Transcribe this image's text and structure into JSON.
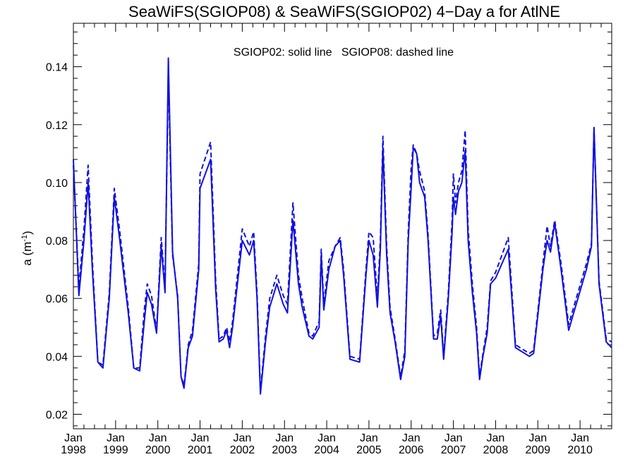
{
  "chart_data": {
    "type": "line",
    "title": "SeaWiFS(SGIOP08) & SeaWiFS(SGIOP02) 4−Day a for AtlNE",
    "annotation": "SGIOP02: solid line   SGIOP08: dashed line",
    "ylabel_main": "a (m",
    "ylabel_sup": "-1",
    "ylabel_close": ")",
    "ylim": [
      0.015,
      0.155
    ],
    "xlim": [
      1998.0,
      2010.75
    ],
    "y_ticks": [
      {
        "value": 0.02,
        "label": "0.02"
      },
      {
        "value": 0.04,
        "label": "0.04"
      },
      {
        "value": 0.06,
        "label": "0.06"
      },
      {
        "value": 0.08,
        "label": "0.08"
      },
      {
        "value": 0.1,
        "label": "0.10"
      },
      {
        "value": 0.12,
        "label": "0.12"
      },
      {
        "value": 0.14,
        "label": "0.14"
      }
    ],
    "x_ticks": [
      {
        "value": 1998,
        "month": "Jan",
        "year": "1998"
      },
      {
        "value": 1999,
        "month": "Jan",
        "year": "1999"
      },
      {
        "value": 2000,
        "month": "Jan",
        "year": "2000"
      },
      {
        "value": 2001,
        "month": "Jan",
        "year": "2001"
      },
      {
        "value": 2002,
        "month": "Jan",
        "year": "2002"
      },
      {
        "value": 2003,
        "month": "Jan",
        "year": "2003"
      },
      {
        "value": 2004,
        "month": "Jan",
        "year": "2004"
      },
      {
        "value": 2005,
        "month": "Jan",
        "year": "2005"
      },
      {
        "value": 2006,
        "month": "Jan",
        "year": "2006"
      },
      {
        "value": 2007,
        "month": "Jan",
        "year": "2007"
      },
      {
        "value": 2008,
        "month": "Jan",
        "year": "2008"
      },
      {
        "value": 2009,
        "month": "Jan",
        "year": "2009"
      },
      {
        "value": 2010,
        "month": "Jan",
        "year": "2010"
      }
    ],
    "line_color": "#1010e0",
    "series": [
      {
        "name": "SGIOP02",
        "style": "solid",
        "points": [
          [
            1998.0,
            0.108
          ],
          [
            1998.13,
            0.061
          ],
          [
            1998.25,
            0.08
          ],
          [
            1998.35,
            0.1
          ],
          [
            1998.45,
            0.07
          ],
          [
            1998.58,
            0.038
          ],
          [
            1998.7,
            0.036
          ],
          [
            1998.85,
            0.06
          ],
          [
            1998.97,
            0.095
          ],
          [
            1999.1,
            0.08
          ],
          [
            1999.3,
            0.055
          ],
          [
            1999.43,
            0.036
          ],
          [
            1999.57,
            0.035
          ],
          [
            1999.68,
            0.052
          ],
          [
            1999.75,
            0.062
          ],
          [
            1999.85,
            0.058
          ],
          [
            1999.97,
            0.048
          ],
          [
            2000.08,
            0.078
          ],
          [
            2000.17,
            0.062
          ],
          [
            2000.25,
            0.143
          ],
          [
            2000.35,
            0.076
          ],
          [
            2000.47,
            0.06
          ],
          [
            2000.55,
            0.033
          ],
          [
            2000.62,
            0.029
          ],
          [
            2000.72,
            0.043
          ],
          [
            2000.82,
            0.047
          ],
          [
            2000.97,
            0.07
          ],
          [
            2001.0,
            0.098
          ],
          [
            2001.25,
            0.108
          ],
          [
            2001.37,
            0.063
          ],
          [
            2001.45,
            0.045
          ],
          [
            2001.55,
            0.046
          ],
          [
            2001.63,
            0.049
          ],
          [
            2001.7,
            0.043
          ],
          [
            2001.77,
            0.05
          ],
          [
            2002.0,
            0.08
          ],
          [
            2002.17,
            0.075
          ],
          [
            2002.27,
            0.08
          ],
          [
            2002.35,
            0.06
          ],
          [
            2002.43,
            0.027
          ],
          [
            2002.55,
            0.045
          ],
          [
            2002.65,
            0.057
          ],
          [
            2002.82,
            0.065
          ],
          [
            2002.97,
            0.058
          ],
          [
            2003.07,
            0.055
          ],
          [
            2003.2,
            0.087
          ],
          [
            2003.33,
            0.065
          ],
          [
            2003.42,
            0.057
          ],
          [
            2003.58,
            0.047
          ],
          [
            2003.67,
            0.046
          ],
          [
            2003.82,
            0.05
          ],
          [
            2003.87,
            0.075
          ],
          [
            2003.93,
            0.056
          ],
          [
            2004.05,
            0.07
          ],
          [
            2004.2,
            0.078
          ],
          [
            2004.32,
            0.08
          ],
          [
            2004.4,
            0.068
          ],
          [
            2004.55,
            0.039
          ],
          [
            2004.78,
            0.038
          ],
          [
            2004.93,
            0.068
          ],
          [
            2005.0,
            0.08
          ],
          [
            2005.1,
            0.075
          ],
          [
            2005.2,
            0.057
          ],
          [
            2005.27,
            0.077
          ],
          [
            2005.33,
            0.112
          ],
          [
            2005.42,
            0.075
          ],
          [
            2005.5,
            0.055
          ],
          [
            2005.62,
            0.045
          ],
          [
            2005.75,
            0.032
          ],
          [
            2005.85,
            0.04
          ],
          [
            2005.93,
            0.08
          ],
          [
            2006.0,
            0.098
          ],
          [
            2006.05,
            0.112
          ],
          [
            2006.13,
            0.11
          ],
          [
            2006.2,
            0.1
          ],
          [
            2006.32,
            0.095
          ],
          [
            2006.4,
            0.08
          ],
          [
            2006.53,
            0.046
          ],
          [
            2006.62,
            0.046
          ],
          [
            2006.7,
            0.054
          ],
          [
            2006.77,
            0.039
          ],
          [
            2006.88,
            0.06
          ],
          [
            2006.97,
            0.083
          ],
          [
            2007.0,
            0.095
          ],
          [
            2007.05,
            0.089
          ],
          [
            2007.12,
            0.097
          ],
          [
            2007.2,
            0.1
          ],
          [
            2007.28,
            0.111
          ],
          [
            2007.35,
            0.08
          ],
          [
            2007.45,
            0.062
          ],
          [
            2007.55,
            0.048
          ],
          [
            2007.62,
            0.032
          ],
          [
            2007.7,
            0.04
          ],
          [
            2007.8,
            0.048
          ],
          [
            2007.88,
            0.065
          ],
          [
            2008.0,
            0.067
          ],
          [
            2008.3,
            0.077
          ],
          [
            2008.47,
            0.043
          ],
          [
            2008.8,
            0.04
          ],
          [
            2008.9,
            0.041
          ],
          [
            2009.12,
            0.07
          ],
          [
            2009.22,
            0.08
          ],
          [
            2009.3,
            0.076
          ],
          [
            2009.4,
            0.086
          ],
          [
            2009.55,
            0.07
          ],
          [
            2009.73,
            0.049
          ],
          [
            2009.85,
            0.055
          ],
          [
            2010.15,
            0.07
          ],
          [
            2010.27,
            0.078
          ],
          [
            2010.33,
            0.119
          ],
          [
            2010.45,
            0.065
          ],
          [
            2010.62,
            0.045
          ],
          [
            2010.75,
            0.043
          ]
        ]
      },
      {
        "name": "SGIOP08",
        "style": "dashed",
        "points": [
          [
            1998.0,
            0.106
          ],
          [
            1998.13,
            0.064
          ],
          [
            1998.25,
            0.084
          ],
          [
            1998.35,
            0.106
          ],
          [
            1998.45,
            0.073
          ],
          [
            1998.58,
            0.038
          ],
          [
            1998.7,
            0.037
          ],
          [
            1998.85,
            0.062
          ],
          [
            1998.97,
            0.098
          ],
          [
            1999.1,
            0.083
          ],
          [
            1999.3,
            0.057
          ],
          [
            1999.43,
            0.036
          ],
          [
            1999.57,
            0.036
          ],
          [
            1999.68,
            0.056
          ],
          [
            1999.75,
            0.065
          ],
          [
            1999.85,
            0.061
          ],
          [
            1999.97,
            0.049
          ],
          [
            2000.08,
            0.081
          ],
          [
            2000.17,
            0.064
          ],
          [
            2000.25,
            0.138
          ],
          [
            2000.35,
            0.075
          ],
          [
            2000.47,
            0.061
          ],
          [
            2000.55,
            0.033
          ],
          [
            2000.62,
            0.03
          ],
          [
            2000.72,
            0.044
          ],
          [
            2000.82,
            0.049
          ],
          [
            2000.97,
            0.072
          ],
          [
            2001.0,
            0.103
          ],
          [
            2001.25,
            0.114
          ],
          [
            2001.37,
            0.066
          ],
          [
            2001.45,
            0.046
          ],
          [
            2001.55,
            0.047
          ],
          [
            2001.63,
            0.05
          ],
          [
            2001.7,
            0.045
          ],
          [
            2001.77,
            0.052
          ],
          [
            2002.0,
            0.084
          ],
          [
            2002.17,
            0.078
          ],
          [
            2002.27,
            0.083
          ],
          [
            2002.35,
            0.062
          ],
          [
            2002.43,
            0.028
          ],
          [
            2002.55,
            0.047
          ],
          [
            2002.65,
            0.06
          ],
          [
            2002.82,
            0.068
          ],
          [
            2002.97,
            0.061
          ],
          [
            2003.07,
            0.058
          ],
          [
            2003.2,
            0.093
          ],
          [
            2003.33,
            0.068
          ],
          [
            2003.42,
            0.06
          ],
          [
            2003.58,
            0.048
          ],
          [
            2003.67,
            0.047
          ],
          [
            2003.82,
            0.052
          ],
          [
            2003.87,
            0.077
          ],
          [
            2003.93,
            0.058
          ],
          [
            2004.05,
            0.073
          ],
          [
            2004.2,
            0.078
          ],
          [
            2004.32,
            0.081
          ],
          [
            2004.4,
            0.07
          ],
          [
            2004.55,
            0.04
          ],
          [
            2004.78,
            0.039
          ],
          [
            2004.93,
            0.07
          ],
          [
            2005.0,
            0.083
          ],
          [
            2005.1,
            0.081
          ],
          [
            2005.2,
            0.06
          ],
          [
            2005.27,
            0.08
          ],
          [
            2005.33,
            0.116
          ],
          [
            2005.42,
            0.078
          ],
          [
            2005.5,
            0.057
          ],
          [
            2005.62,
            0.046
          ],
          [
            2005.75,
            0.033
          ],
          [
            2005.85,
            0.042
          ],
          [
            2005.93,
            0.083
          ],
          [
            2006.0,
            0.105
          ],
          [
            2006.05,
            0.113
          ],
          [
            2006.13,
            0.11
          ],
          [
            2006.2,
            0.104
          ],
          [
            2006.32,
            0.097
          ],
          [
            2006.4,
            0.082
          ],
          [
            2006.53,
            0.047
          ],
          [
            2006.62,
            0.048
          ],
          [
            2006.7,
            0.056
          ],
          [
            2006.77,
            0.04
          ],
          [
            2006.88,
            0.062
          ],
          [
            2006.97,
            0.087
          ],
          [
            2007.0,
            0.103
          ],
          [
            2007.05,
            0.093
          ],
          [
            2007.12,
            0.1
          ],
          [
            2007.2,
            0.104
          ],
          [
            2007.28,
            0.118
          ],
          [
            2007.35,
            0.084
          ],
          [
            2007.45,
            0.065
          ],
          [
            2007.55,
            0.05
          ],
          [
            2007.62,
            0.033
          ],
          [
            2007.7,
            0.041
          ],
          [
            2007.8,
            0.05
          ],
          [
            2007.88,
            0.066
          ],
          [
            2008.0,
            0.069
          ],
          [
            2008.3,
            0.081
          ],
          [
            2008.47,
            0.044
          ],
          [
            2008.8,
            0.041
          ],
          [
            2008.9,
            0.042
          ],
          [
            2009.12,
            0.072
          ],
          [
            2009.22,
            0.085
          ],
          [
            2009.3,
            0.078
          ],
          [
            2009.4,
            0.087
          ],
          [
            2009.55,
            0.072
          ],
          [
            2009.73,
            0.051
          ],
          [
            2009.85,
            0.057
          ],
          [
            2010.15,
            0.072
          ],
          [
            2010.27,
            0.079
          ],
          [
            2010.33,
            0.119
          ],
          [
            2010.45,
            0.066
          ],
          [
            2010.62,
            0.046
          ],
          [
            2010.75,
            0.045
          ]
        ]
      }
    ]
  }
}
